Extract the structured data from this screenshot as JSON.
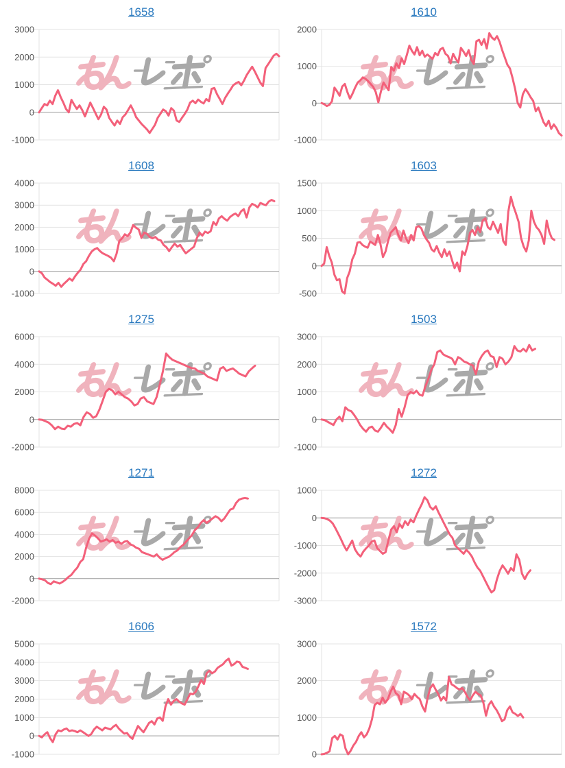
{
  "colors": {
    "background": "#ffffff",
    "line": "#f3607a",
    "link": "#2878be",
    "grid": "#e3e3e3",
    "zero_line": "#999999",
    "tick_label": "#555555"
  },
  "watermark": {
    "text": "みんレポ",
    "pink_text": "みん",
    "gray_text": "レポ",
    "pink_color": "#f0b3bd",
    "gray_color": "#a9a9a9"
  },
  "chart_data": [
    {
      "type": "line",
      "title": "1658",
      "xlabel": "",
      "ylabel": "",
      "yticks": [
        3000,
        2000,
        1000,
        0,
        -1000
      ],
      "ylim": [
        -1000,
        3000
      ],
      "xfrac": 1.0,
      "values": [
        0,
        150,
        300,
        250,
        420,
        300,
        600,
        800,
        550,
        350,
        120,
        0,
        450,
        280,
        120,
        250,
        80,
        -150,
        100,
        350,
        150,
        -50,
        -250,
        -80,
        200,
        100,
        -200,
        -350,
        -480,
        -300,
        -420,
        -180,
        -80,
        80,
        250,
        60,
        -180,
        -300,
        -420,
        -520,
        -620,
        -750,
        -600,
        -450,
        -200,
        -50,
        100,
        40,
        -120,
        150,
        60,
        -300,
        -350,
        -200,
        -60,
        100,
        350,
        420,
        330,
        460,
        380,
        320,
        480,
        400,
        850,
        880,
        650,
        480,
        300,
        520,
        680,
        820,
        980,
        1050,
        1100,
        980,
        1150,
        1350,
        1500,
        1650,
        1480,
        1280,
        1080,
        950,
        1600,
        1750,
        1900,
        2050,
        2120,
        2030
      ]
    },
    {
      "type": "line",
      "title": "1610",
      "xlabel": "",
      "ylabel": "",
      "yticks": [
        2000,
        1000,
        0,
        -1000
      ],
      "ylim": [
        -1000,
        2000
      ],
      "xfrac": 1.0,
      "values": [
        0,
        -30,
        -80,
        -50,
        50,
        420,
        320,
        200,
        450,
        520,
        300,
        120,
        260,
        420,
        560,
        620,
        700,
        660,
        600,
        520,
        440,
        300,
        20,
        320,
        560,
        450,
        350,
        980,
        880,
        1080,
        950,
        1220,
        1060,
        1300,
        1560,
        1420,
        1320,
        1520,
        1300,
        1420,
        1260,
        1320,
        1260,
        1200,
        1360,
        1300,
        1460,
        1500,
        1340,
        1280,
        1080,
        1340,
        1200,
        1100,
        1500,
        1400,
        1280,
        1440,
        1180,
        1060,
        1680,
        1720,
        1580,
        1740,
        1480,
        1900,
        1780,
        1720,
        1820,
        1660,
        1440,
        1240,
        1040,
        940,
        680,
        380,
        0,
        -120,
        240,
        380,
        280,
        160,
        60,
        -220,
        -120,
        -320,
        -520,
        -620,
        -480,
        -700,
        -580,
        -680,
        -820,
        -880
      ]
    },
    {
      "type": "line",
      "title": "1608",
      "xlabel": "",
      "ylabel": "",
      "yticks": [
        4000,
        3000,
        2000,
        1000,
        0,
        -1000
      ],
      "ylim": [
        -1000,
        4000
      ],
      "xfrac": 0.98,
      "values": [
        0,
        -80,
        -280,
        -380,
        -480,
        -560,
        -650,
        -520,
        -700,
        -560,
        -440,
        -320,
        -420,
        -220,
        -60,
        80,
        340,
        460,
        700,
        900,
        1000,
        1060,
        920,
        820,
        760,
        700,
        620,
        460,
        800,
        1380,
        1500,
        1680,
        1600,
        1760,
        2100,
        1980,
        1900,
        1520,
        1760,
        1700,
        1560,
        1500,
        1560,
        1440,
        1400,
        1200,
        1100,
        920,
        1100,
        1260,
        1120,
        1200,
        1000,
        820,
        920,
        1020,
        1120,
        1500,
        1760,
        1620,
        1800,
        1740,
        1820,
        2240,
        2100,
        2400,
        2500,
        2380,
        2300,
        2460,
        2560,
        2620,
        2500,
        2720,
        2820,
        2440,
        2900,
        3060,
        3000,
        2900,
        3100,
        3040,
        3000,
        3160,
        3240,
        3180
      ]
    },
    {
      "type": "line",
      "title": "1603",
      "xlabel": "",
      "ylabel": "",
      "yticks": [
        1500,
        1000,
        500,
        0,
        -500
      ],
      "ylim": [
        -500,
        1500
      ],
      "xfrac": 0.97,
      "values": [
        0,
        40,
        340,
        180,
        60,
        -160,
        -260,
        -240,
        -460,
        -500,
        -220,
        -100,
        120,
        220,
        420,
        430,
        380,
        350,
        330,
        440,
        410,
        380,
        560,
        400,
        160,
        260,
        450,
        600,
        650,
        700,
        560,
        460,
        640,
        500,
        410,
        560,
        460,
        700,
        720,
        680,
        560,
        480,
        420,
        300,
        260,
        360,
        240,
        160,
        300,
        180,
        260,
        100,
        -40,
        60,
        -100,
        260,
        200,
        360,
        600,
        650,
        560,
        700,
        610,
        820,
        860,
        700,
        660,
        800,
        700,
        600,
        760,
        450,
        380,
        980,
        1250,
        1080,
        950,
        800,
        500,
        350,
        260,
        460,
        1000,
        800,
        700,
        650,
        560,
        400,
        820,
        620,
        500,
        470
      ]
    },
    {
      "type": "line",
      "title": "1275",
      "xlabel": "",
      "ylabel": "",
      "yticks": [
        6000,
        4000,
        2000,
        0,
        -2000
      ],
      "ylim": [
        -2000,
        6000
      ],
      "xfrac": 0.9,
      "values": [
        0,
        -20,
        -120,
        -220,
        -420,
        -700,
        -520,
        -660,
        -700,
        -460,
        -520,
        -320,
        -260,
        -420,
        180,
        520,
        400,
        120,
        240,
        720,
        1340,
        2000,
        2220,
        2120,
        1820,
        2020,
        1820,
        1620,
        1520,
        1320,
        1020,
        1120,
        1520,
        1620,
        1320,
        1220,
        1120,
        1620,
        2520,
        3520,
        4780,
        4520,
        4320,
        4220,
        4120,
        4020,
        3920,
        3820,
        3720,
        3700,
        3520,
        3420,
        3320,
        3120,
        3020,
        2920,
        2820,
        3680,
        3800,
        3520,
        3620,
        3700,
        3520,
        3320,
        3220,
        3120,
        3480,
        3700,
        3900
      ]
    },
    {
      "type": "line",
      "title": "1503",
      "xlabel": "",
      "ylabel": "",
      "yticks": [
        3000,
        2000,
        1000,
        0,
        -1000
      ],
      "ylim": [
        -1000,
        3000
      ],
      "xfrac": 0.89,
      "values": [
        0,
        -20,
        -80,
        -140,
        -200,
        0,
        100,
        -60,
        440,
        340,
        300,
        160,
        0,
        -200,
        -340,
        -440,
        -300,
        -260,
        -400,
        -440,
        -300,
        -120,
        -260,
        -360,
        -480,
        -200,
        380,
        100,
        440,
        880,
        1000,
        940,
        1040,
        900,
        860,
        1200,
        1480,
        1800,
        2000,
        2440,
        2500,
        2360,
        2300,
        2260,
        2200,
        2000,
        2260,
        2200,
        2100,
        2060,
        2000,
        1960,
        1640,
        2100,
        2300,
        2440,
        2500,
        2300,
        2260,
        1900,
        2260,
        2200,
        2000,
        2100,
        2260,
        2660,
        2500,
        2460,
        2560,
        2460,
        2700,
        2500,
        2560
      ]
    },
    {
      "type": "line",
      "title": "1271",
      "xlabel": "",
      "ylabel": "",
      "yticks": [
        8000,
        6000,
        4000,
        2000,
        0,
        -2000
      ],
      "ylim": [
        -2000,
        8000
      ],
      "xfrac": 0.87,
      "values": [
        0,
        -60,
        -150,
        -400,
        -500,
        -250,
        -350,
        -450,
        -300,
        -100,
        150,
        350,
        700,
        1000,
        1500,
        1750,
        2800,
        3600,
        4100,
        3900,
        3650,
        3350,
        3450,
        3550,
        3350,
        3500,
        3250,
        3350,
        3150,
        3350,
        3400,
        3100,
        3000,
        2800,
        2700,
        2400,
        2300,
        2200,
        2100,
        2000,
        2200,
        1900,
        1700,
        1850,
        1950,
        2150,
        2400,
        2550,
        2850,
        3050,
        3350,
        3650,
        3950,
        4400,
        4650,
        5050,
        5300,
        5050,
        5250,
        5450,
        5650,
        5500,
        5200,
        5450,
        5850,
        6250,
        6350,
        6850,
        7150,
        7250,
        7300,
        7250
      ]
    },
    {
      "type": "line",
      "title": "1272",
      "xlabel": "",
      "ylabel": "",
      "yticks": [
        1000,
        0,
        -1000,
        -2000,
        -3000
      ],
      "ylim": [
        -3000,
        1000
      ],
      "xfrac": 0.87,
      "values": [
        0,
        -10,
        -40,
        -100,
        -200,
        -380,
        -580,
        -780,
        -1000,
        -1180,
        -1000,
        -820,
        -1140,
        -1300,
        -1400,
        -1220,
        -1100,
        -1000,
        -860,
        -820,
        -1100,
        -1200,
        -1300,
        -1240,
        -820,
        -420,
        -300,
        -520,
        -220,
        -360,
        -120,
        -260,
        -60,
        -160,
        80,
        300,
        500,
        750,
        640,
        400,
        300,
        420,
        200,
        0,
        -200,
        -400,
        -600,
        -720,
        -1000,
        -1100,
        -1200,
        -1300,
        -1160,
        -1260,
        -1400,
        -1620,
        -1800,
        -1920,
        -2120,
        -2320,
        -2520,
        -2700,
        -2620,
        -2220,
        -1920,
        -1720,
        -1860,
        -2020,
        -1820,
        -1920,
        -1320,
        -1520,
        -2020,
        -2220,
        -2020,
        -1900
      ]
    },
    {
      "type": "line",
      "title": "1606",
      "xlabel": "",
      "ylabel": "",
      "yticks": [
        5000,
        4000,
        3000,
        2000,
        1000,
        0,
        -1000
      ],
      "ylim": [
        -1000,
        5000
      ],
      "xfrac": 0.87,
      "values": [
        0,
        -80,
        80,
        200,
        -120,
        -340,
        80,
        300,
        250,
        350,
        400,
        260,
        300,
        260,
        200,
        300,
        200,
        100,
        0,
        100,
        350,
        500,
        400,
        300,
        450,
        400,
        350,
        500,
        600,
        400,
        260,
        120,
        160,
        -40,
        -160,
        200,
        540,
        360,
        200,
        450,
        700,
        800,
        620,
        940,
        1000,
        820,
        1600,
        2000,
        1700,
        1900,
        2000,
        1860,
        1760,
        1700,
        2000,
        2300,
        2260,
        2400,
        2700,
        3040,
        2820,
        3400,
        3540,
        3400,
        3500,
        3700,
        3800,
        3900,
        4080,
        4200,
        3820,
        3900,
        4040,
        4000,
        3760,
        3700,
        3640
      ]
    },
    {
      "type": "line",
      "title": "1572",
      "xlabel": "",
      "ylabel": "",
      "yticks": [
        3000,
        2000,
        1000,
        0
      ],
      "ylim": [
        0,
        3000
      ],
      "xfrac": 0.84,
      "values": [
        0,
        10,
        40,
        80,
        440,
        500,
        400,
        540,
        500,
        160,
        0,
        100,
        240,
        340,
        500,
        600,
        460,
        540,
        700,
        950,
        1340,
        1400,
        1360,
        1540,
        1400,
        1500,
        1700,
        1840,
        1660,
        1600,
        1360,
        1700,
        1660,
        1600,
        1500,
        1640,
        1560,
        1500,
        1300,
        1160,
        1540,
        1800,
        1900,
        1760,
        1640,
        1460,
        1560,
        1460,
        2100,
        1900,
        1860,
        1800,
        1760,
        1800,
        1700,
        1560,
        1460,
        1600,
        1700,
        1640,
        1600,
        1400,
        1050,
        1340,
        1440,
        1300,
        1200,
        1060,
        900,
        950,
        1200,
        1300,
        1140,
        1100,
        1040,
        1100,
        1000
      ]
    }
  ]
}
